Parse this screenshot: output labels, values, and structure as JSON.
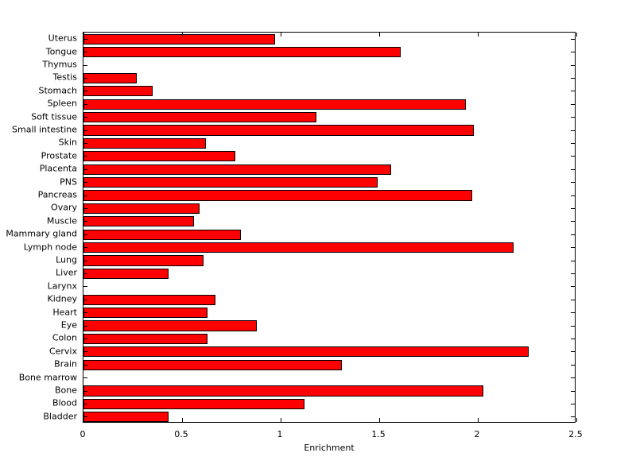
{
  "chart_data": {
    "type": "bar",
    "orientation": "horizontal",
    "title": "",
    "xlabel": "Enrichment",
    "ylabel": "",
    "xlim": [
      0,
      2.5
    ],
    "xticks": [
      0,
      0.5,
      1,
      1.5,
      2,
      2.5
    ],
    "xtick_labels": [
      "0",
      "0.5",
      "1",
      "1.5",
      "2",
      "2.5"
    ],
    "grid": false,
    "legend": "none",
    "bar_color": "#ff0000",
    "bar_edge_color": "#000000",
    "categories": [
      "Uterus",
      "Tongue",
      "Thymus",
      "Testis",
      "Stomach",
      "Spleen",
      "Soft tissue",
      "Small intestine",
      "Skin",
      "Prostate",
      "Placenta",
      "PNS",
      "Pancreas",
      "Ovary",
      "Muscle",
      "Mammary gland",
      "Lymph node",
      "Lung",
      "Liver",
      "Larynx",
      "Kidney",
      "Heart",
      "Eye",
      "Colon",
      "Cervix",
      "Brain",
      "Bone marrow",
      "Bone",
      "Blood",
      "Bladder"
    ],
    "values": [
      0.97,
      1.61,
      0,
      0.27,
      0.35,
      1.94,
      1.18,
      1.98,
      0.62,
      0.77,
      1.56,
      1.49,
      1.97,
      0.59,
      0.56,
      0.8,
      2.18,
      0.61,
      0.43,
      0,
      0.67,
      0.63,
      0.88,
      0.63,
      2.26,
      1.31,
      0,
      2.03,
      1.12,
      0.43
    ]
  },
  "figure": {
    "background_color": "#ffffff"
  }
}
